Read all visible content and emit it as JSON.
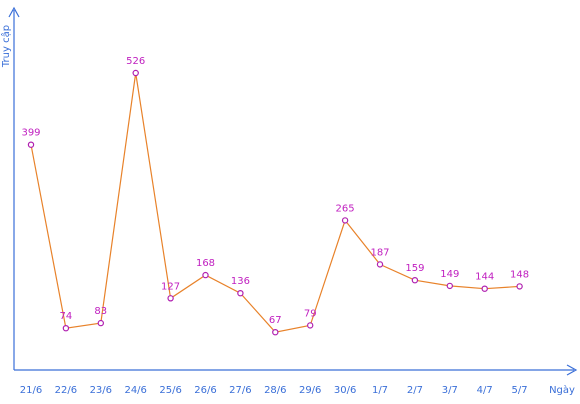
{
  "chart_data": {
    "type": "line",
    "title": "",
    "xlabel": "Ngày",
    "ylabel": "Truy cập",
    "categories": [
      "21/6",
      "22/6",
      "23/6",
      "24/6",
      "25/6",
      "26/6",
      "27/6",
      "28/6",
      "29/6",
      "30/6",
      "1/7",
      "2/7",
      "3/7",
      "4/7",
      "5/7"
    ],
    "series": [
      {
        "name": "",
        "values": [
          399,
          74,
          83,
          526,
          127,
          168,
          136,
          67,
          79,
          265,
          187,
          159,
          149,
          144,
          148
        ]
      }
    ],
    "ylim": [
      0,
      600
    ],
    "grid": false,
    "legend": "none",
    "show_data_labels": true
  },
  "colors": {
    "axis": "#3a6fd8",
    "line": "#e8822a",
    "marker": "#b01fb0",
    "data_label": "#c020c0",
    "tick_label": "#3a6fd8"
  }
}
